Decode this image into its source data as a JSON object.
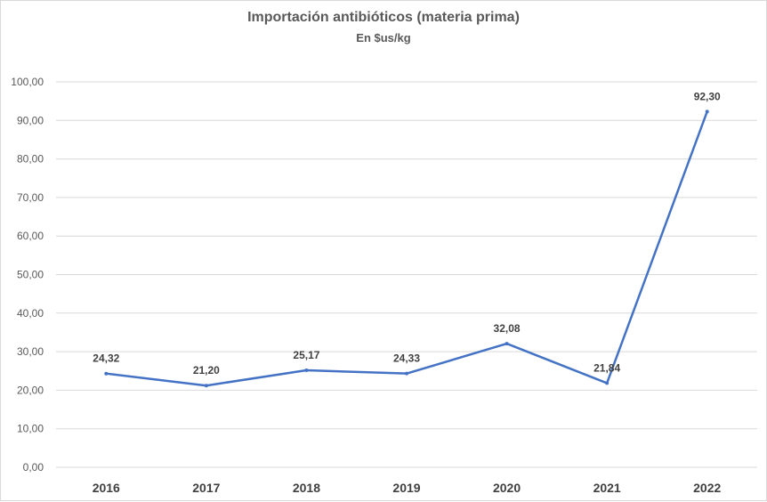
{
  "chart_data": {
    "type": "line",
    "title": "Importación antibióticos (materia prima)",
    "subtitle": "En $us/kg",
    "categories": [
      "2016",
      "2017",
      "2018",
      "2019",
      "2020",
      "2021",
      "2022"
    ],
    "series": [
      {
        "name": "$us/kg",
        "values": [
          24.32,
          21.2,
          25.17,
          24.33,
          32.08,
          21.84,
          92.3
        ],
        "labels": [
          "24,32",
          "21,20",
          "25,17",
          "24,33",
          "32,08",
          "21,84",
          "92,30"
        ],
        "color": "#4472c4"
      }
    ],
    "yticks": [
      "0,00",
      "10,00",
      "20,00",
      "30,00",
      "40,00",
      "50,00",
      "60,00",
      "70,00",
      "80,00",
      "90,00",
      "100,00"
    ],
    "ylim": [
      0,
      100
    ],
    "grid": true,
    "legend": "none"
  }
}
